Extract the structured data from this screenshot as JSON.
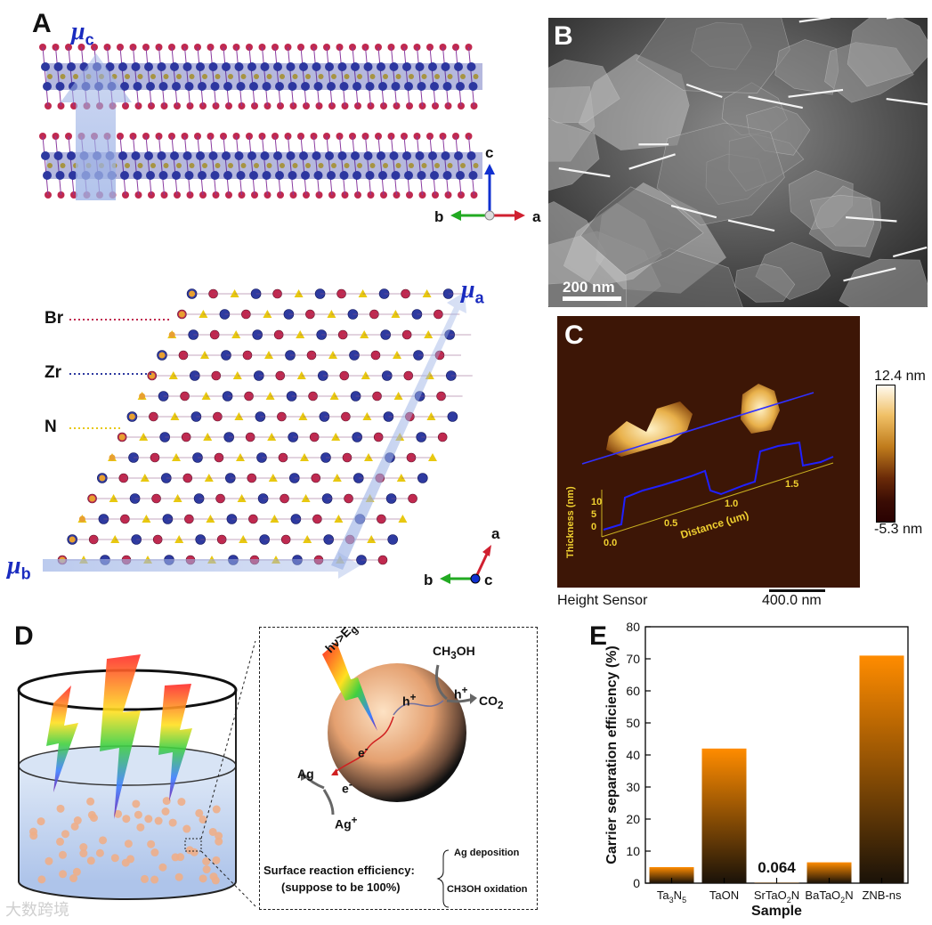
{
  "panels": {
    "A": "A",
    "B": "B",
    "C": "C",
    "D": "D",
    "E": "E"
  },
  "panelA": {
    "mu_c": "μ",
    "mu_c_sub": "c",
    "mu_a": "μ",
    "mu_a_sub": "a",
    "mu_b": "μ",
    "mu_b_sub": "b",
    "axes_top": {
      "c": "c",
      "b": "b",
      "a": "a"
    },
    "axes_bottom": {
      "a": "a",
      "b": "b",
      "c": "c"
    },
    "legend": [
      {
        "label": "Br",
        "color": "#c0294f"
      },
      {
        "label": "Zr",
        "color": "#2e3aa0"
      },
      {
        "label": "N",
        "color": "#e8c810"
      }
    ]
  },
  "panelB": {
    "scale_label": "200 nm"
  },
  "panelC": {
    "colorbar_max": "12.4 nm",
    "colorbar_min": "-5.3 nm",
    "height_sensor": "Height Sensor",
    "scale_label": "400.0 nm",
    "profile_ylabel": "Thickness (nm)",
    "profile_xlabel": "Distance (um)",
    "profile_yticks": [
      "10",
      "5",
      "0"
    ],
    "profile_xticks": [
      "0.0",
      "0.5",
      "1.0",
      "1.5"
    ]
  },
  "panelD": {
    "hv": "hν>E",
    "hv_sub": "g",
    "ch3oh": "CH",
    "ch3oh_sub": "3",
    "ch3oh_end": "OH",
    "hplus_inner": "h",
    "hplus_outer": "h",
    "plus": "+",
    "co2": "CO",
    "co2_sub": "2",
    "eminus": "e",
    "minus": "-",
    "ag": "Ag",
    "agplus": "Ag",
    "agplus_sup": "+",
    "sre_line1": "Surface reaction efficiency:",
    "sre_line2": "(suppose to be 100%)",
    "ag_deposition": "Ag deposition",
    "ch3oh_oxidation": "CH3OH oxidation"
  },
  "chart_data": {
    "type": "bar",
    "categories": [
      "Ta3N5",
      "TaON",
      "SrTaO2N",
      "BaTaO2N",
      "ZNB-ns"
    ],
    "category_display": [
      [
        "Ta",
        "3",
        "N",
        "5"
      ],
      [
        "TaON"
      ],
      [
        "SrTaO",
        "2",
        "N"
      ],
      [
        "BaTaO",
        "2",
        "N"
      ],
      [
        "ZNB-ns"
      ]
    ],
    "values": [
      5,
      42,
      0.064,
      6.5,
      71
    ],
    "annotation": "0.064",
    "ylabel": "Carrier separation efficiency (%)",
    "xlabel": "Sample",
    "ylim": [
      0,
      80
    ],
    "yticks": [
      0,
      10,
      20,
      30,
      40,
      50,
      60,
      70,
      80
    ],
    "bar_gradient": [
      "#ff8c00",
      "#1a1208"
    ]
  },
  "watermark": "大数跨境"
}
